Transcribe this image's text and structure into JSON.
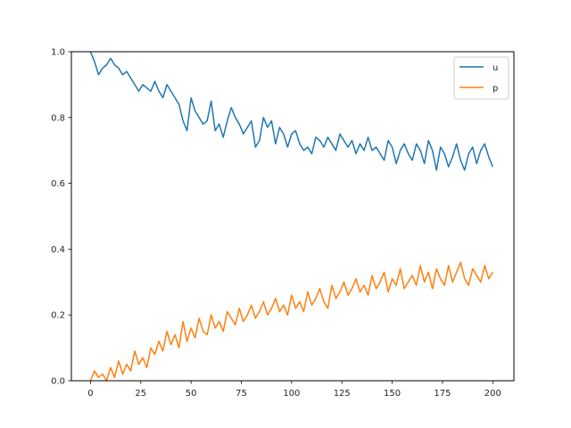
{
  "chart_data": {
    "type": "line",
    "title": "",
    "xlabel": "",
    "ylabel": "",
    "xlim": [
      -9.5,
      210.5
    ],
    "ylim": [
      0.0,
      1.0
    ],
    "x_ticks": [
      0,
      25,
      50,
      75,
      100,
      125,
      150,
      175,
      200
    ],
    "y_ticks": [
      0.0,
      0.2,
      0.4,
      0.6,
      0.8,
      1.0
    ],
    "x_tick_labels": [
      "0",
      "25",
      "50",
      "75",
      "100",
      "125",
      "150",
      "175",
      "200"
    ],
    "y_tick_labels": [
      "0.0",
      "0.2",
      "0.4",
      "0.6",
      "0.8",
      "1.0"
    ],
    "grid": false,
    "legend_position": "top-right",
    "series": [
      {
        "name": "u",
        "color": "#1f77b4",
        "x": [
          0,
          2,
          4,
          6,
          8,
          10,
          12,
          14,
          16,
          18,
          20,
          22,
          24,
          26,
          28,
          30,
          32,
          34,
          36,
          38,
          40,
          42,
          44,
          46,
          48,
          50,
          52,
          54,
          56,
          58,
          60,
          62,
          64,
          66,
          68,
          70,
          72,
          74,
          76,
          78,
          80,
          82,
          84,
          86,
          88,
          90,
          92,
          94,
          96,
          98,
          100,
          102,
          104,
          106,
          108,
          110,
          112,
          114,
          116,
          118,
          120,
          122,
          124,
          126,
          128,
          130,
          132,
          134,
          136,
          138,
          140,
          142,
          144,
          146,
          148,
          150,
          152,
          154,
          156,
          158,
          160,
          162,
          164,
          166,
          168,
          170,
          172,
          174,
          176,
          178,
          180,
          182,
          184,
          186,
          188,
          190,
          192,
          194,
          196,
          198,
          200
        ],
        "values": [
          1.0,
          0.97,
          0.93,
          0.95,
          0.96,
          0.98,
          0.96,
          0.95,
          0.93,
          0.94,
          0.92,
          0.9,
          0.88,
          0.9,
          0.89,
          0.88,
          0.91,
          0.88,
          0.86,
          0.9,
          0.88,
          0.86,
          0.84,
          0.79,
          0.76,
          0.86,
          0.82,
          0.8,
          0.78,
          0.79,
          0.85,
          0.76,
          0.78,
          0.74,
          0.79,
          0.83,
          0.8,
          0.78,
          0.75,
          0.77,
          0.79,
          0.71,
          0.73,
          0.8,
          0.77,
          0.79,
          0.72,
          0.77,
          0.75,
          0.71,
          0.75,
          0.76,
          0.72,
          0.7,
          0.71,
          0.69,
          0.74,
          0.73,
          0.71,
          0.74,
          0.72,
          0.7,
          0.75,
          0.73,
          0.71,
          0.73,
          0.69,
          0.72,
          0.7,
          0.74,
          0.7,
          0.71,
          0.69,
          0.67,
          0.73,
          0.71,
          0.66,
          0.7,
          0.72,
          0.69,
          0.67,
          0.72,
          0.7,
          0.66,
          0.73,
          0.7,
          0.64,
          0.71,
          0.69,
          0.65,
          0.68,
          0.72,
          0.67,
          0.64,
          0.69,
          0.71,
          0.66,
          0.7,
          0.72,
          0.68,
          0.65
        ]
      },
      {
        "name": "p",
        "color": "#ff7f0e",
        "x": [
          0,
          2,
          4,
          6,
          8,
          10,
          12,
          14,
          16,
          18,
          20,
          22,
          24,
          26,
          28,
          30,
          32,
          34,
          36,
          38,
          40,
          42,
          44,
          46,
          48,
          50,
          52,
          54,
          56,
          58,
          60,
          62,
          64,
          66,
          68,
          70,
          72,
          74,
          76,
          78,
          80,
          82,
          84,
          86,
          88,
          90,
          92,
          94,
          96,
          98,
          100,
          102,
          104,
          106,
          108,
          110,
          112,
          114,
          116,
          118,
          120,
          122,
          124,
          126,
          128,
          130,
          132,
          134,
          136,
          138,
          140,
          142,
          144,
          146,
          148,
          150,
          152,
          154,
          156,
          158,
          160,
          162,
          164,
          166,
          168,
          170,
          172,
          174,
          176,
          178,
          180,
          182,
          184,
          186,
          188,
          190,
          192,
          194,
          196,
          198,
          200
        ],
        "values": [
          0.0,
          0.03,
          0.01,
          0.02,
          0.0,
          0.04,
          0.01,
          0.06,
          0.02,
          0.05,
          0.03,
          0.09,
          0.05,
          0.07,
          0.04,
          0.1,
          0.08,
          0.12,
          0.09,
          0.15,
          0.11,
          0.14,
          0.1,
          0.18,
          0.12,
          0.16,
          0.13,
          0.19,
          0.15,
          0.14,
          0.2,
          0.16,
          0.18,
          0.15,
          0.21,
          0.19,
          0.17,
          0.22,
          0.18,
          0.2,
          0.23,
          0.19,
          0.21,
          0.24,
          0.2,
          0.22,
          0.25,
          0.21,
          0.23,
          0.2,
          0.26,
          0.22,
          0.24,
          0.21,
          0.27,
          0.23,
          0.25,
          0.28,
          0.24,
          0.22,
          0.29,
          0.25,
          0.27,
          0.3,
          0.26,
          0.28,
          0.31,
          0.27,
          0.29,
          0.26,
          0.32,
          0.28,
          0.3,
          0.33,
          0.27,
          0.31,
          0.29,
          0.34,
          0.28,
          0.3,
          0.32,
          0.29,
          0.35,
          0.3,
          0.33,
          0.28,
          0.34,
          0.31,
          0.29,
          0.35,
          0.3,
          0.33,
          0.36,
          0.31,
          0.29,
          0.34,
          0.32,
          0.3,
          0.35,
          0.31,
          0.33
        ]
      }
    ]
  }
}
